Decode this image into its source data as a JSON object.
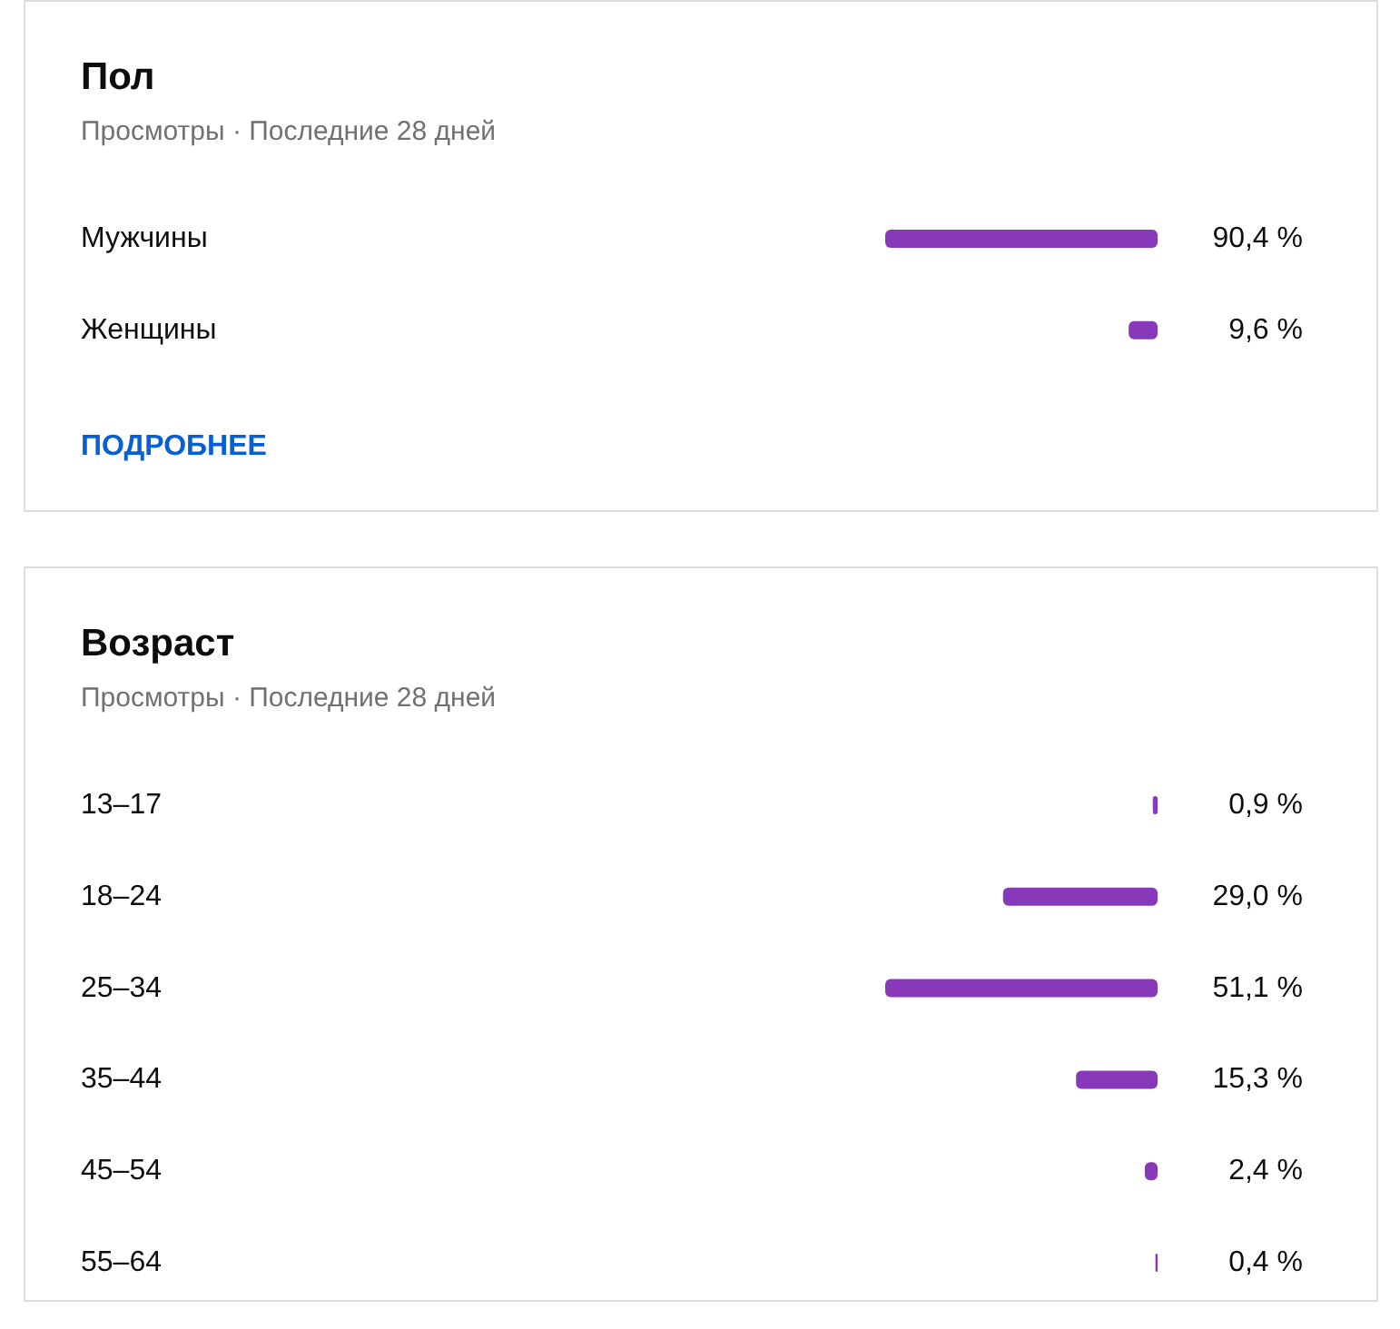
{
  "chart_data": [
    {
      "type": "bar",
      "orientation": "horizontal",
      "title": "Пол",
      "subtitle": "Просмотры · Последние 28 дней",
      "categories": [
        "Мужчины",
        "Женщины"
      ],
      "values": [
        90.4,
        9.6
      ],
      "value_labels": [
        "90,4 %",
        "9,6 %"
      ],
      "color": "#8739b9",
      "tick_labels": "y",
      "annotations": [
        "ПОДРОБНЕЕ"
      ]
    },
    {
      "type": "bar",
      "orientation": "horizontal",
      "title": "Возраст",
      "subtitle": "Просмотры · Последние 28 дней",
      "categories": [
        "13–17",
        "18–24",
        "25–34",
        "35–44",
        "45–54",
        "55–64"
      ],
      "values": [
        0.9,
        29.0,
        51.1,
        15.3,
        2.4,
        0.4
      ],
      "value_labels": [
        "0,9 %",
        "29,0 %",
        "51,1 %",
        "15,3 %",
        "2,4 %",
        "0,4 %"
      ],
      "color": "#8739b9",
      "tick_labels": "y"
    }
  ]
}
